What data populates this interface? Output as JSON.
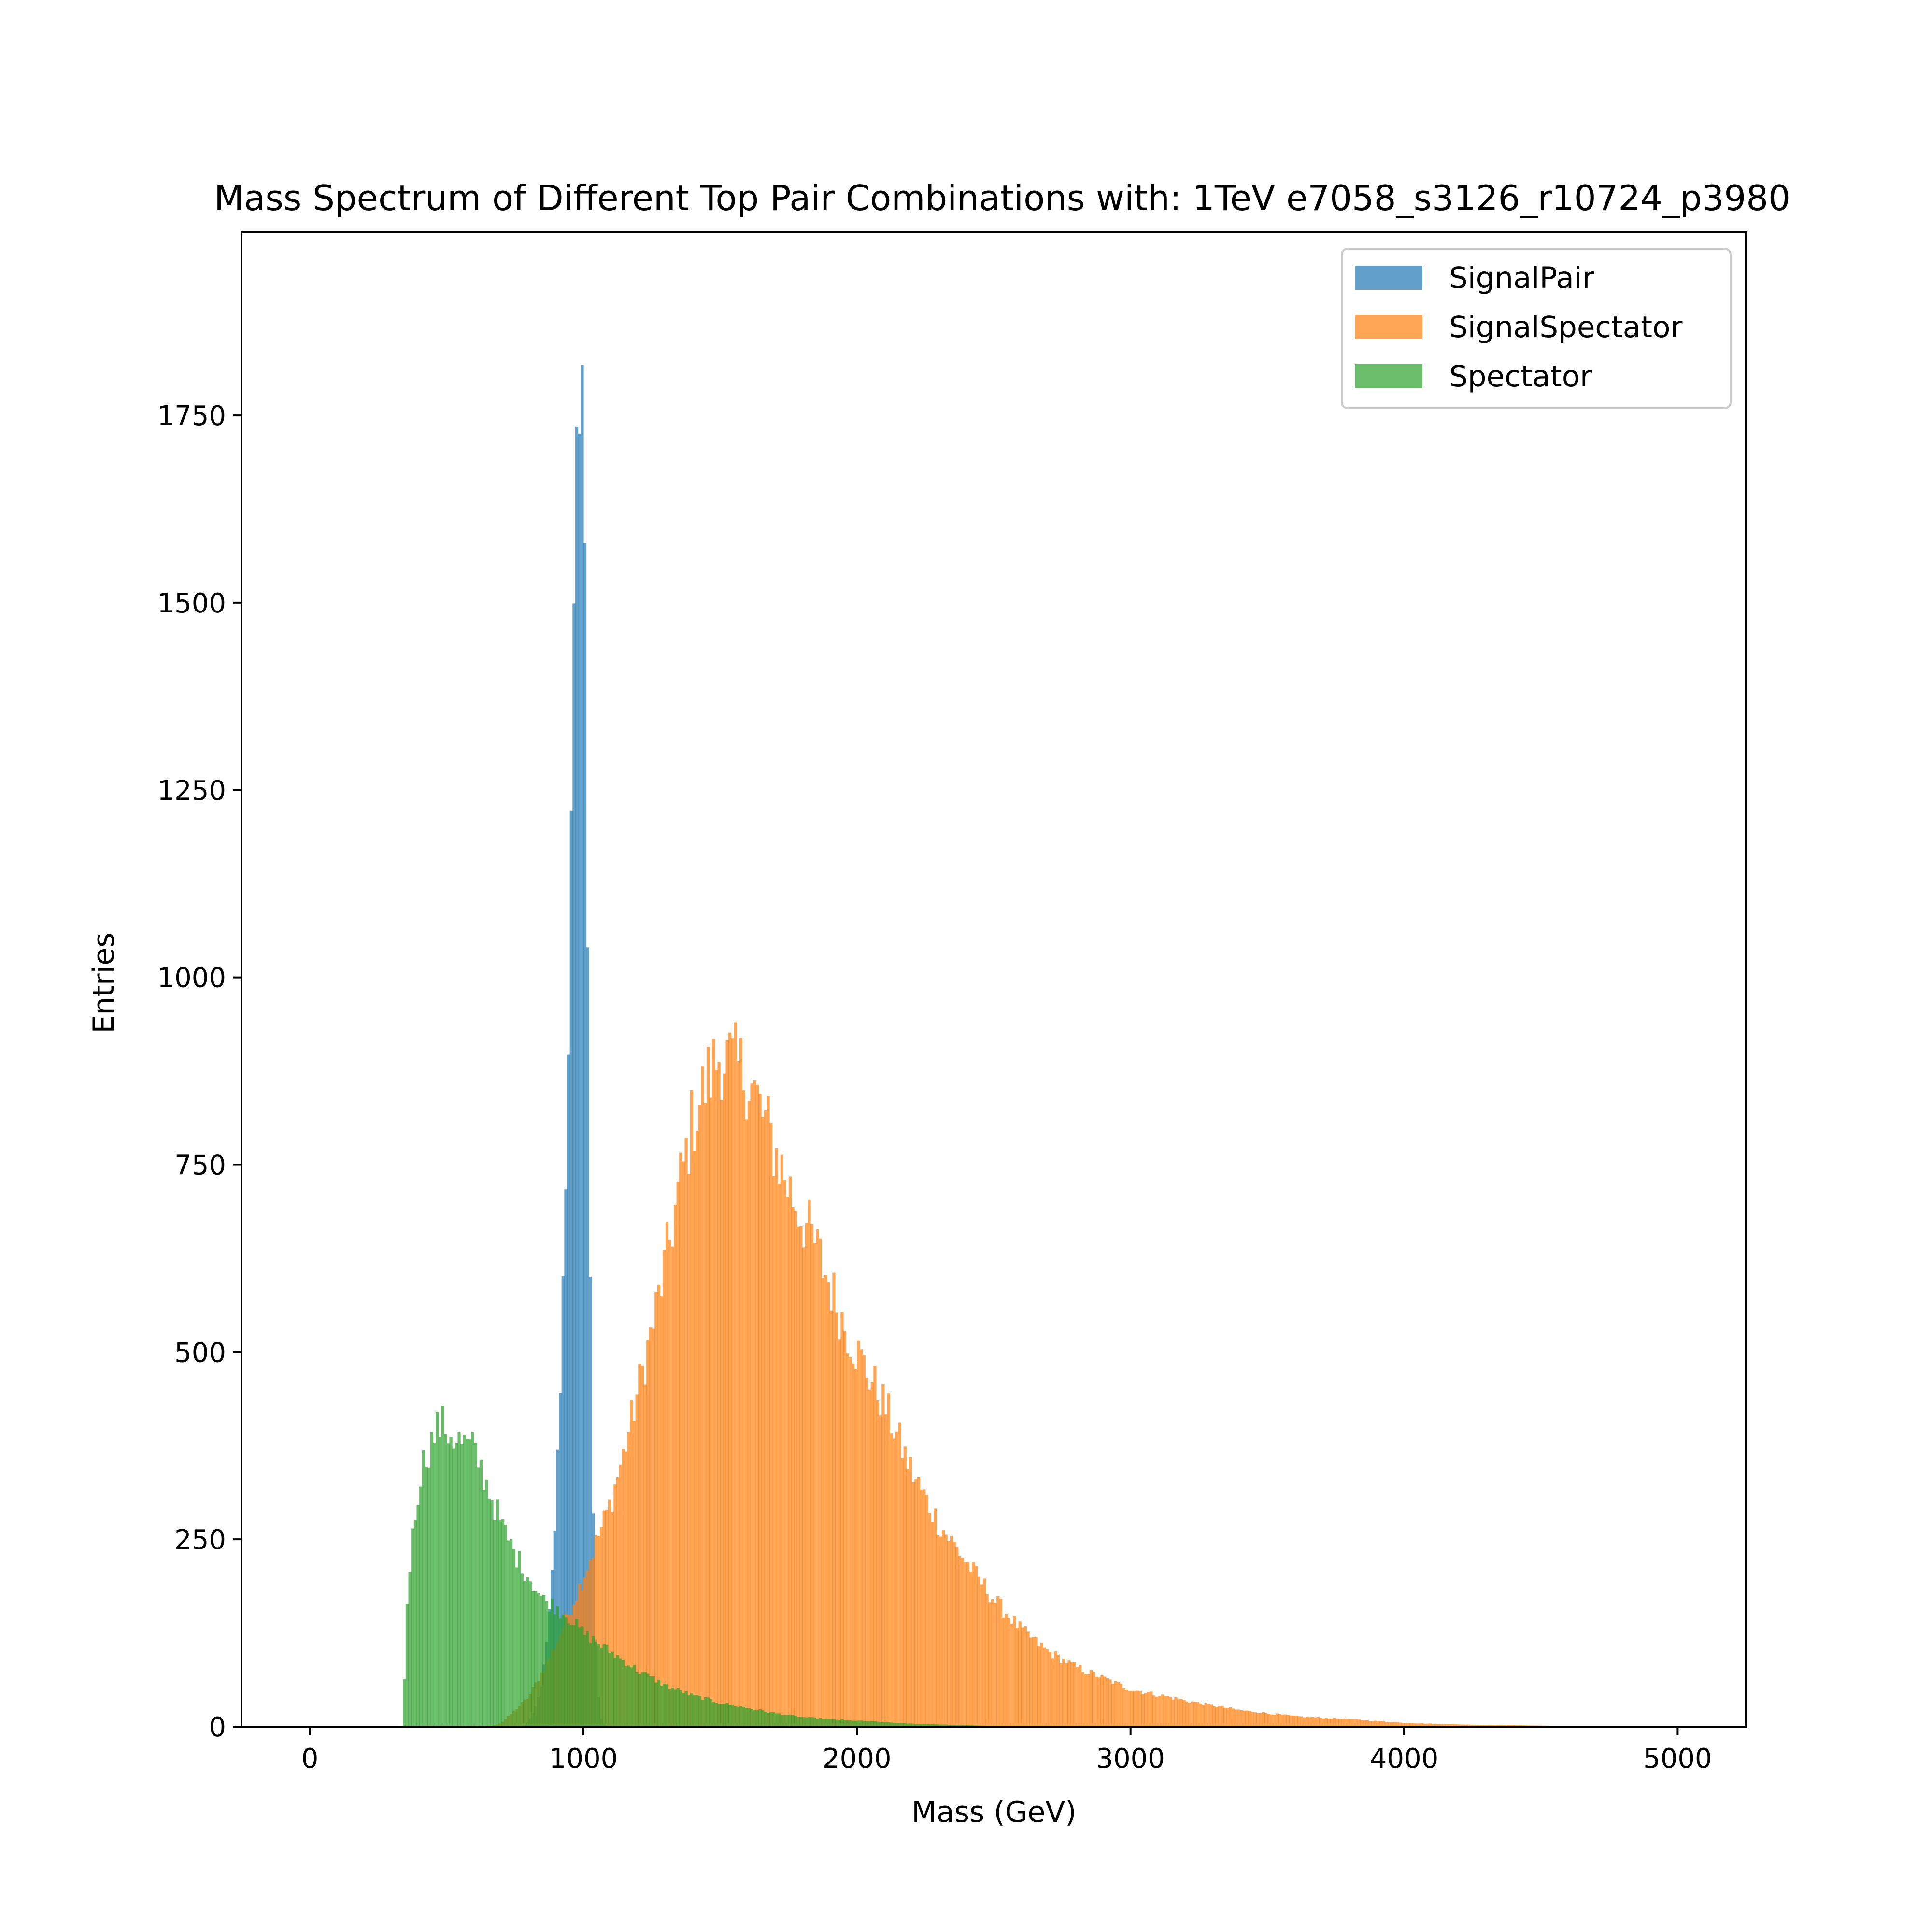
{
  "chart_data": {
    "type": "bar",
    "title": "Mass Spectrum of Different Top Pair Combinations with: 1TeV e7058_s3126_r10724_p3980",
    "xlabel": "Mass (GeV)",
    "ylabel": "Entries",
    "xlim": [
      -250,
      5250
    ],
    "ylim": [
      0,
      1995
    ],
    "xticks": [
      0,
      1000,
      2000,
      3000,
      4000,
      5000
    ],
    "yticks": [
      0,
      250,
      500,
      750,
      1000,
      1250,
      1500,
      1750
    ],
    "grid": false,
    "legend_position": "top-right",
    "bin_width": 10,
    "series": [
      {
        "name": "SignalPair",
        "color": "#1f77b4",
        "opacity": 0.7,
        "shape": "peak",
        "x": [
          780,
          800,
          820,
          840,
          860,
          880,
          900,
          920,
          940,
          950,
          960,
          970,
          980,
          990,
          1000,
          1010,
          1020,
          1030,
          1040,
          1050,
          1060,
          1080
        ],
        "y": [
          0,
          8,
          20,
          45,
          90,
          170,
          300,
          520,
          820,
          1050,
          1300,
          1550,
          1760,
          1890,
          1760,
          1300,
          820,
          420,
          160,
          60,
          15,
          0
        ]
      },
      {
        "name": "SignalSpectator",
        "color": "#ff7f0e",
        "opacity": 0.7,
        "shape": "rise",
        "x": [
          660,
          700,
          800,
          900,
          1000,
          1050,
          1100,
          1150,
          1200,
          1250,
          1300,
          1350,
          1400,
          1450,
          1500,
          1550,
          1600,
          1650,
          1700,
          1750,
          1800,
          1850,
          1900,
          1950,
          2000,
          2100,
          2200,
          2300,
          2400,
          2500,
          2600,
          2700,
          2800,
          2900,
          3000,
          3200,
          3400,
          3600,
          3800,
          4000,
          4200,
          4400,
          4600,
          4800,
          5000
        ],
        "y": [
          0,
          5,
          40,
          110,
          200,
          250,
          300,
          370,
          450,
          530,
          620,
          720,
          810,
          860,
          900,
          880,
          870,
          820,
          770,
          720,
          680,
          640,
          590,
          540,
          500,
          430,
          340,
          270,
          220,
          170,
          130,
          100,
          80,
          65,
          50,
          35,
          22,
          14,
          10,
          5,
          3,
          2,
          1,
          0,
          0
        ]
      },
      {
        "name": "Spectator",
        "color": "#2ca02c",
        "opacity": 0.7,
        "shape": "cliff",
        "x": [
          340,
          350,
          360,
          380,
          400,
          420,
          440,
          460,
          480,
          500,
          550,
          600,
          650,
          700,
          750,
          800,
          850,
          900,
          950,
          1000,
          1100,
          1200,
          1300,
          1400,
          1500,
          1600,
          1700,
          1800,
          1900,
          2000,
          2200,
          2400,
          2600
        ],
        "y": [
          0,
          130,
          200,
          270,
          330,
          360,
          375,
          395,
          405,
          395,
          380,
          370,
          320,
          270,
          230,
          200,
          170,
          160,
          145,
          125,
          100,
          75,
          55,
          42,
          32,
          25,
          18,
          13,
          10,
          8,
          4,
          2,
          0
        ]
      }
    ]
  }
}
